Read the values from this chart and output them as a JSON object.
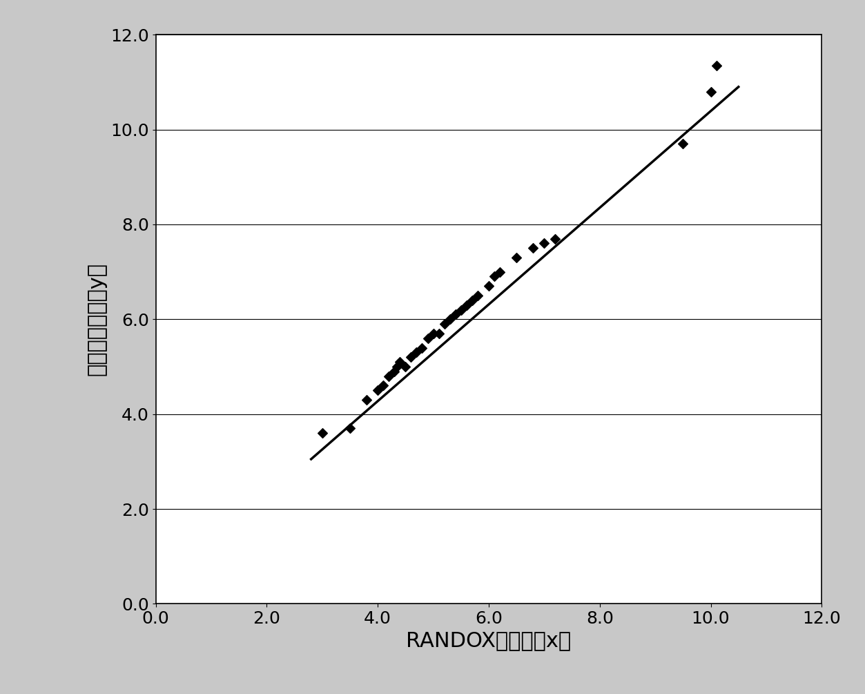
{
  "x_data": [
    3.0,
    3.5,
    3.8,
    4.0,
    4.1,
    4.2,
    4.3,
    4.35,
    4.4,
    4.5,
    4.6,
    4.7,
    4.8,
    4.9,
    5.0,
    5.1,
    5.2,
    5.3,
    5.4,
    5.5,
    5.6,
    5.7,
    5.8,
    6.0,
    6.1,
    6.2,
    6.5,
    6.8,
    7.0,
    7.2,
    9.5,
    10.0,
    10.1
  ],
  "y_data": [
    3.6,
    3.7,
    4.3,
    4.5,
    4.6,
    4.8,
    4.9,
    5.0,
    5.1,
    5.0,
    5.2,
    5.3,
    5.4,
    5.6,
    5.7,
    5.7,
    5.9,
    6.0,
    6.1,
    6.2,
    6.3,
    6.4,
    6.5,
    6.7,
    6.9,
    7.0,
    7.3,
    7.5,
    7.6,
    7.7,
    9.7,
    10.8,
    11.35
  ],
  "line_x": [
    2.8,
    10.5
  ],
  "line_y": [
    3.05,
    10.9
  ],
  "xlim": [
    0.0,
    12.0
  ],
  "ylim": [
    0.0,
    12.0
  ],
  "xticks": [
    0.0,
    2.0,
    4.0,
    6.0,
    8.0,
    10.0,
    12.0
  ],
  "yticks": [
    0.0,
    2.0,
    4.0,
    6.0,
    8.0,
    10.0,
    12.0
  ],
  "xlabel": "RANDOX鍶试剂（x）",
  "ylabel": "本发明的试剂（y）",
  "marker_color": "#000000",
  "line_color": "#000000",
  "background_color": "#c8c8c8",
  "plot_bg_color": "#ffffff",
  "grid_color": "#000000",
  "marker_size": 7,
  "line_width": 2.5,
  "xlabel_fontsize": 22,
  "ylabel_fontsize": 22,
  "tick_fontsize": 18
}
